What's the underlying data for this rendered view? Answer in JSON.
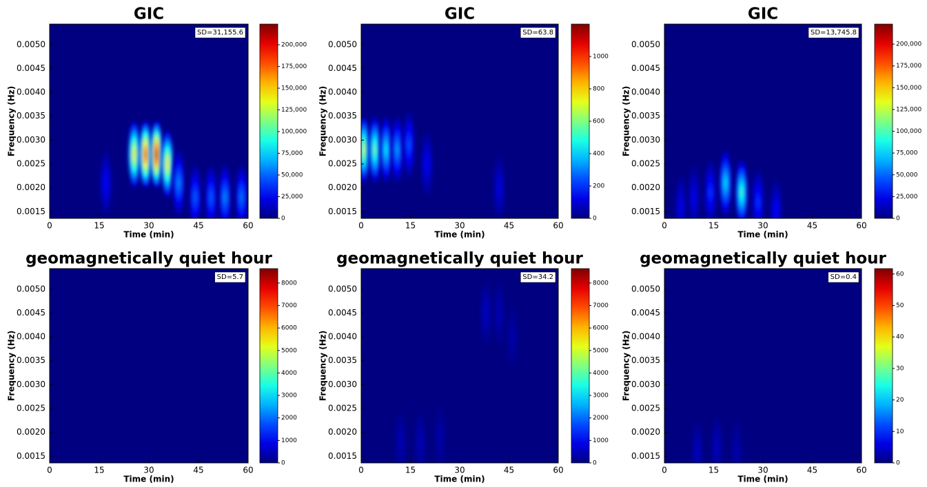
{
  "chart_data": [
    {
      "type": "heatmap",
      "title": "GIC",
      "xlabel": "Time (min)",
      "ylabel": "Frequency (Hz)",
      "annotation": "SD=31,155.6",
      "colormap": "jet",
      "xlim": [
        0,
        60
      ],
      "xticks": [
        0,
        15,
        30,
        45,
        60
      ],
      "ylim": [
        0.00136,
        0.00543
      ],
      "yticks": [
        0.0015,
        {
          "value": 0.002,
          "label": "0.0020"
        },
        0.0025,
        {
          "value": 0.003,
          "label": "0.0030"
        },
        0.0035,
        {
          "value": 0.004,
          "label": "0.0040"
        },
        0.0045,
        {
          "value": 0.005,
          "label": "0.0050"
        }
      ],
      "clim": [
        0,
        223800
      ],
      "cticks": [
        0,
        {
          "value": 25000,
          "label": "25,000"
        },
        {
          "value": 50000,
          "label": "50,000"
        },
        {
          "value": 75000,
          "label": "75,000"
        },
        {
          "value": 100000,
          "label": "100,000"
        },
        {
          "value": 125000,
          "label": "125,000"
        },
        {
          "value": 150000,
          "label": "150,000"
        },
        {
          "value": 175000,
          "label": "175,000"
        },
        {
          "value": 200000,
          "label": "200,000"
        }
      ],
      "x": [
        17,
        25.6,
        29,
        32.3,
        35.6,
        39,
        44,
        48.8,
        53,
        58
      ],
      "y": [
        0.0021,
        0.0027,
        0.0027,
        0.0027,
        0.0025,
        0.0021,
        0.0018,
        0.0018,
        0.0018,
        0.0018
      ],
      "values": [
        30000,
        150000,
        200000,
        220000,
        150000,
        60000,
        50000,
        50000,
        60000,
        55000
      ]
    },
    {
      "type": "heatmap",
      "title": "GIC",
      "xlabel": "Time (min)",
      "ylabel": "Frequency (Hz)",
      "annotation": "SD=63.8",
      "colormap": "jet",
      "xlim": [
        0,
        60
      ],
      "xticks": [
        0,
        15,
        30,
        45,
        60
      ],
      "ylim": [
        0.00136,
        0.00543
      ],
      "yticks": [
        0.0015,
        {
          "value": 0.002,
          "label": "0.0020"
        },
        0.0025,
        {
          "value": 0.003,
          "label": "0.0030"
        },
        0.0035,
        {
          "value": 0.004,
          "label": "0.0040"
        },
        0.0045,
        {
          "value": 0.005,
          "label": "0.0050"
        }
      ],
      "clim": [
        0,
        1200
      ],
      "cticks": [
        0,
        200,
        400,
        600,
        800,
        1000
      ],
      "x": [
        0.8,
        4.2,
        7.6,
        11,
        14.5,
        20,
        42
      ],
      "y": [
        0.0028,
        0.0028,
        0.0028,
        0.0028,
        0.0029,
        0.0025,
        0.002
      ],
      "values": [
        700,
        600,
        450,
        350,
        250,
        150,
        120
      ]
    },
    {
      "type": "heatmap",
      "title": "GIC",
      "xlabel": "Time (min)",
      "ylabel": "Frequency (Hz)",
      "annotation": "SD=13,745.8",
      "colormap": "jet",
      "xlim": [
        0,
        60
      ],
      "xticks": [
        0,
        15,
        30,
        45,
        60
      ],
      "ylim": [
        0.00136,
        0.00543
      ],
      "yticks": [
        0.0015,
        {
          "value": 0.002,
          "label": "0.0020"
        },
        0.0025,
        {
          "value": 0.003,
          "label": "0.0030"
        },
        0.0035,
        {
          "value": 0.004,
          "label": "0.0040"
        },
        0.0045,
        {
          "value": 0.005,
          "label": "0.0050"
        }
      ],
      "clim": [
        0,
        223000
      ],
      "cticks": [
        0,
        {
          "value": 25000,
          "label": "25,000"
        },
        {
          "value": 50000,
          "label": "50,000"
        },
        {
          "value": 75000,
          "label": "75,000"
        },
        {
          "value": 100000,
          "label": "100,000"
        },
        {
          "value": 125000,
          "label": "125,000"
        },
        {
          "value": 150000,
          "label": "150,000"
        },
        {
          "value": 175000,
          "label": "175,000"
        },
        {
          "value": 200000,
          "label": "200,000"
        }
      ],
      "x": [
        5,
        9,
        14,
        18.6,
        23.5,
        28.5,
        34
      ],
      "y": [
        0.0016,
        0.0018,
        0.0019,
        0.0021,
        0.0019,
        0.0017,
        0.0015
      ],
      "values": [
        25000,
        25000,
        40000,
        80000,
        100000,
        40000,
        30000
      ]
    },
    {
      "type": "heatmap",
      "title": "geomagnetically quiet hour",
      "xlabel": "Time (min)",
      "ylabel": "Frequency (Hz)",
      "annotation": "SD=5.7",
      "colormap": "jet",
      "xlim": [
        0,
        60
      ],
      "xticks": [
        0,
        15,
        30,
        45,
        60
      ],
      "ylim": [
        0.00136,
        0.00543
      ],
      "yticks": [
        0.0015,
        {
          "value": 0.002,
          "label": "0.0020"
        },
        0.0025,
        {
          "value": 0.003,
          "label": "0.0030"
        },
        0.0035,
        {
          "value": 0.004,
          "label": "0.0040"
        },
        0.0045,
        {
          "value": 0.005,
          "label": "0.0050"
        }
      ],
      "clim": [
        0,
        8640
      ],
      "cticks": [
        0,
        1000,
        2000,
        3000,
        4000,
        5000,
        6000,
        7000,
        8000
      ]
    },
    {
      "type": "heatmap",
      "title": "geomagnetically quiet hour",
      "xlabel": "Time (min)",
      "ylabel": "Frequency (Hz)",
      "annotation": "SD=34.2",
      "colormap": "jet",
      "xlim": [
        0,
        60
      ],
      "xticks": [
        0,
        15,
        30,
        45,
        60
      ],
      "ylim": [
        0.00136,
        0.00543
      ],
      "yticks": [
        0.0015,
        {
          "value": 0.002,
          "label": "0.0020"
        },
        0.0025,
        {
          "value": 0.003,
          "label": "0.0030"
        },
        0.0035,
        {
          "value": 0.004,
          "label": "0.0040"
        },
        0.0045,
        {
          "value": 0.005,
          "label": "0.0050"
        }
      ],
      "clim": [
        0,
        8640
      ],
      "cticks": [
        0,
        1000,
        2000,
        3000,
        4000,
        5000,
        6000,
        7000,
        8000
      ],
      "x": [
        12,
        18,
        24,
        38,
        42,
        46
      ],
      "y": [
        0.0018,
        0.0018,
        0.0019,
        0.0045,
        0.0045,
        0.004
      ],
      "values": [
        500,
        500,
        400,
        600,
        500,
        400
      ]
    },
    {
      "type": "heatmap",
      "title": "geomagnetically quiet hour",
      "xlabel": "Time (min)",
      "ylabel": "Frequency (Hz)",
      "annotation": "SD=0.4",
      "colormap": "jet",
      "xlim": [
        0,
        60
      ],
      "xticks": [
        0,
        15,
        30,
        45,
        60
      ],
      "ylim": [
        0.00136,
        0.00543
      ],
      "yticks": [
        0.0015,
        {
          "value": 0.002,
          "label": "0.0020"
        },
        0.0025,
        {
          "value": 0.003,
          "label": "0.0030"
        },
        0.0035,
        {
          "value": 0.004,
          "label": "0.0040"
        },
        0.0045,
        {
          "value": 0.005,
          "label": "0.0050"
        }
      ],
      "clim": [
        0,
        61.7
      ],
      "cticks": [
        0,
        10,
        20,
        30,
        40,
        50,
        60
      ],
      "x": [
        10,
        16,
        22
      ],
      "y": [
        0.0016,
        0.0017,
        0.0016
      ],
      "values": [
        4,
        4,
        3
      ]
    }
  ]
}
